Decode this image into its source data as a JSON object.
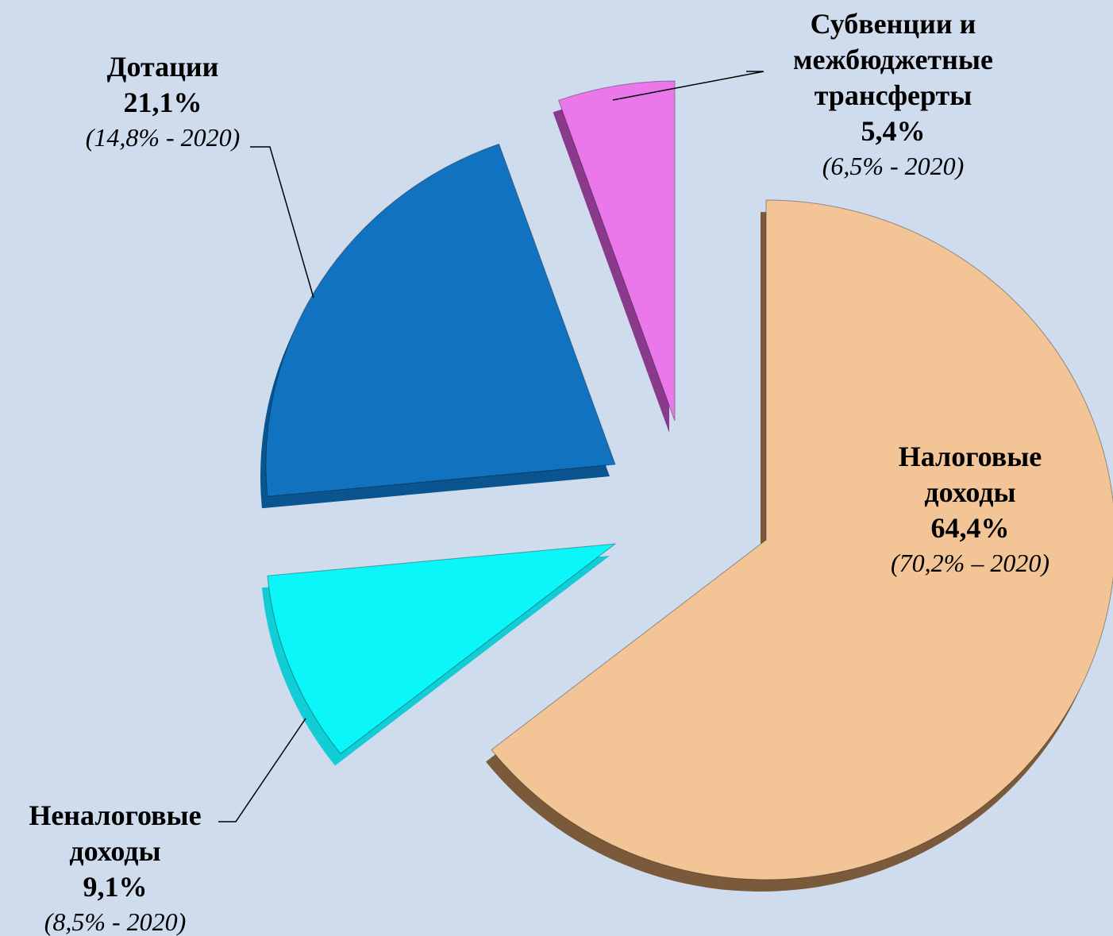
{
  "chart_data": {
    "type": "pie",
    "categories": [
      "Налоговые доходы",
      "Неналоговые доходы",
      "Дотации",
      "Субвенции и межбюджетные трансферты"
    ],
    "values": [
      64.4,
      9.1,
      21.1,
      5.4
    ],
    "value_labels": [
      "64,4%",
      "9,1%",
      "21,1%",
      "5,4%"
    ],
    "previous_labels": [
      "(70,2% – 2020)",
      "(8,5% - 2020)",
      "(14,8% - 2020)",
      "(6,5% - 2020)"
    ],
    "colors": [
      "#f2c496",
      "#0bf6f8",
      "#1173bf",
      "#ea78ea"
    ]
  }
}
